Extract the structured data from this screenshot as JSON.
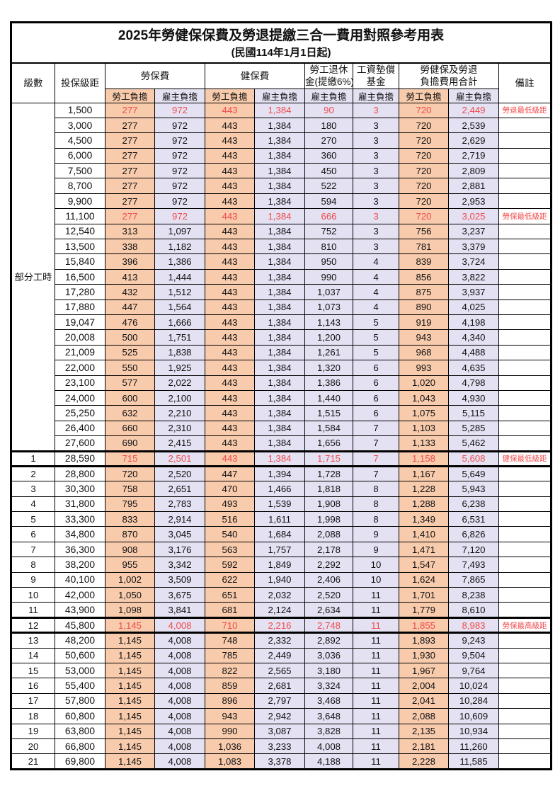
{
  "title": "2025年勞健保保費及勞退提繳三合一費用對照參考用表",
  "subtitle": "(民國114年1月1日起)",
  "header": {
    "level": "級數",
    "salary_bracket": "投保級距",
    "labor_insurance": "勞保費",
    "health_insurance": "健保費",
    "pension_line1": "勞工退休",
    "pension_line2": "金(提繳6%)",
    "wage_fund_line1": "工資墊償",
    "wage_fund_line2": "基金",
    "total_line1": "勞健保及勞退",
    "total_line2": "負擔費用合計",
    "note": "備註",
    "employee_label": "勞工負擔",
    "employer_label": "雇主負擔"
  },
  "part_time_label": "部分工時",
  "colors": {
    "employee_bg": "#F8CBAD",
    "employer_bg": "#E3E1F2",
    "highlight_text": "#F14B4B",
    "border": "#000000"
  },
  "rows": [
    {
      "level": "",
      "salary": "1,500",
      "values": [
        "277",
        "972",
        "443",
        "1,384",
        "90",
        "3",
        "720",
        "2,449"
      ],
      "note": "勞退最低級距",
      "red": true,
      "thick": false
    },
    {
      "level": "",
      "salary": "3,000",
      "values": [
        "277",
        "972",
        "443",
        "1,384",
        "180",
        "3",
        "720",
        "2,539"
      ],
      "note": "",
      "red": false,
      "thick": false
    },
    {
      "level": "",
      "salary": "4,500",
      "values": [
        "277",
        "972",
        "443",
        "1,384",
        "270",
        "3",
        "720",
        "2,629"
      ],
      "note": "",
      "red": false,
      "thick": false
    },
    {
      "level": "",
      "salary": "6,000",
      "values": [
        "277",
        "972",
        "443",
        "1,384",
        "360",
        "3",
        "720",
        "2,719"
      ],
      "note": "",
      "red": false,
      "thick": false
    },
    {
      "level": "",
      "salary": "7,500",
      "values": [
        "277",
        "972",
        "443",
        "1,384",
        "450",
        "3",
        "720",
        "2,809"
      ],
      "note": "",
      "red": false,
      "thick": false
    },
    {
      "level": "",
      "salary": "8,700",
      "values": [
        "277",
        "972",
        "443",
        "1,384",
        "522",
        "3",
        "720",
        "2,881"
      ],
      "note": "",
      "red": false,
      "thick": false
    },
    {
      "level": "",
      "salary": "9,900",
      "values": [
        "277",
        "972",
        "443",
        "1,384",
        "594",
        "3",
        "720",
        "2,953"
      ],
      "note": "",
      "red": false,
      "thick": false
    },
    {
      "level": "",
      "salary": "11,100",
      "values": [
        "277",
        "972",
        "443",
        "1,384",
        "666",
        "3",
        "720",
        "3,025"
      ],
      "note": "勞保最低級距",
      "red": true,
      "thick": false
    },
    {
      "level": "",
      "salary": "12,540",
      "values": [
        "313",
        "1,097",
        "443",
        "1,384",
        "752",
        "3",
        "756",
        "3,237"
      ],
      "note": "",
      "red": false,
      "thick": false
    },
    {
      "level": "",
      "salary": "13,500",
      "values": [
        "338",
        "1,182",
        "443",
        "1,384",
        "810",
        "3",
        "781",
        "3,379"
      ],
      "note": "",
      "red": false,
      "thick": false
    },
    {
      "level": "",
      "salary": "15,840",
      "values": [
        "396",
        "1,386",
        "443",
        "1,384",
        "950",
        "4",
        "839",
        "3,724"
      ],
      "note": "",
      "red": false,
      "thick": false
    },
    {
      "level": "",
      "salary": "16,500",
      "values": [
        "413",
        "1,444",
        "443",
        "1,384",
        "990",
        "4",
        "856",
        "3,822"
      ],
      "note": "",
      "red": false,
      "thick": false
    },
    {
      "level": "",
      "salary": "17,280",
      "values": [
        "432",
        "1,512",
        "443",
        "1,384",
        "1,037",
        "4",
        "875",
        "3,937"
      ],
      "note": "",
      "red": false,
      "thick": false
    },
    {
      "level": "",
      "salary": "17,880",
      "values": [
        "447",
        "1,564",
        "443",
        "1,384",
        "1,073",
        "4",
        "890",
        "4,025"
      ],
      "note": "",
      "red": false,
      "thick": false
    },
    {
      "level": "",
      "salary": "19,047",
      "values": [
        "476",
        "1,666",
        "443",
        "1,384",
        "1,143",
        "5",
        "919",
        "4,198"
      ],
      "note": "",
      "red": false,
      "thick": false
    },
    {
      "level": "",
      "salary": "20,008",
      "values": [
        "500",
        "1,751",
        "443",
        "1,384",
        "1,200",
        "5",
        "943",
        "4,340"
      ],
      "note": "",
      "red": false,
      "thick": false
    },
    {
      "level": "",
      "salary": "21,009",
      "values": [
        "525",
        "1,838",
        "443",
        "1,384",
        "1,261",
        "5",
        "968",
        "4,488"
      ],
      "note": "",
      "red": false,
      "thick": false
    },
    {
      "level": "",
      "salary": "22,000",
      "values": [
        "550",
        "1,925",
        "443",
        "1,384",
        "1,320",
        "6",
        "993",
        "4,635"
      ],
      "note": "",
      "red": false,
      "thick": false
    },
    {
      "level": "",
      "salary": "23,100",
      "values": [
        "577",
        "2,022",
        "443",
        "1,384",
        "1,386",
        "6",
        "1,020",
        "4,798"
      ],
      "note": "",
      "red": false,
      "thick": false
    },
    {
      "level": "",
      "salary": "24,000",
      "values": [
        "600",
        "2,100",
        "443",
        "1,384",
        "1,440",
        "6",
        "1,043",
        "4,930"
      ],
      "note": "",
      "red": false,
      "thick": false
    },
    {
      "level": "",
      "salary": "25,250",
      "values": [
        "632",
        "2,210",
        "443",
        "1,384",
        "1,515",
        "6",
        "1,075",
        "5,115"
      ],
      "note": "",
      "red": false,
      "thick": false
    },
    {
      "level": "",
      "salary": "26,400",
      "values": [
        "660",
        "2,310",
        "443",
        "1,384",
        "1,584",
        "7",
        "1,103",
        "5,285"
      ],
      "note": "",
      "red": false,
      "thick": false
    },
    {
      "level": "",
      "salary": "27,600",
      "values": [
        "690",
        "2,415",
        "443",
        "1,384",
        "1,656",
        "7",
        "1,133",
        "5,462"
      ],
      "note": "",
      "red": false,
      "thick": false
    },
    {
      "level": "1",
      "salary": "28,590",
      "values": [
        "715",
        "2,501",
        "443",
        "1,384",
        "1,715",
        "7",
        "1,158",
        "5,608"
      ],
      "note": "健保最低級距",
      "red": true,
      "thick": true
    },
    {
      "level": "2",
      "salary": "28,800",
      "values": [
        "720",
        "2,520",
        "447",
        "1,394",
        "1,728",
        "7",
        "1,167",
        "5,649"
      ],
      "note": "",
      "red": false,
      "thick": false
    },
    {
      "level": "3",
      "salary": "30,300",
      "values": [
        "758",
        "2,651",
        "470",
        "1,466",
        "1,818",
        "8",
        "1,228",
        "5,943"
      ],
      "note": "",
      "red": false,
      "thick": false
    },
    {
      "level": "4",
      "salary": "31,800",
      "values": [
        "795",
        "2,783",
        "493",
        "1,539",
        "1,908",
        "8",
        "1,288",
        "6,238"
      ],
      "note": "",
      "red": false,
      "thick": false
    },
    {
      "level": "5",
      "salary": "33,300",
      "values": [
        "833",
        "2,914",
        "516",
        "1,611",
        "1,998",
        "8",
        "1,349",
        "6,531"
      ],
      "note": "",
      "red": false,
      "thick": false
    },
    {
      "level": "6",
      "salary": "34,800",
      "values": [
        "870",
        "3,045",
        "540",
        "1,684",
        "2,088",
        "9",
        "1,410",
        "6,826"
      ],
      "note": "",
      "red": false,
      "thick": false
    },
    {
      "level": "7",
      "salary": "36,300",
      "values": [
        "908",
        "3,176",
        "563",
        "1,757",
        "2,178",
        "9",
        "1,471",
        "7,120"
      ],
      "note": "",
      "red": false,
      "thick": false
    },
    {
      "level": "8",
      "salary": "38,200",
      "values": [
        "955",
        "3,342",
        "592",
        "1,849",
        "2,292",
        "10",
        "1,547",
        "7,493"
      ],
      "note": "",
      "red": false,
      "thick": false
    },
    {
      "level": "9",
      "salary": "40,100",
      "values": [
        "1,002",
        "3,509",
        "622",
        "1,940",
        "2,406",
        "10",
        "1,624",
        "7,865"
      ],
      "note": "",
      "red": false,
      "thick": false
    },
    {
      "level": "10",
      "salary": "42,000",
      "values": [
        "1,050",
        "3,675",
        "651",
        "2,032",
        "2,520",
        "11",
        "1,701",
        "8,238"
      ],
      "note": "",
      "red": false,
      "thick": false
    },
    {
      "level": "11",
      "salary": "43,900",
      "values": [
        "1,098",
        "3,841",
        "681",
        "2,124",
        "2,634",
        "11",
        "1,779",
        "8,610"
      ],
      "note": "",
      "red": false,
      "thick": false
    },
    {
      "level": "12",
      "salary": "45,800",
      "values": [
        "1,145",
        "4,008",
        "710",
        "2,216",
        "2,748",
        "11",
        "1,855",
        "8,983"
      ],
      "note": "勞保最高級距",
      "red": true,
      "thick": true
    },
    {
      "level": "13",
      "salary": "48,200",
      "values": [
        "1,145",
        "4,008",
        "748",
        "2,332",
        "2,892",
        "11",
        "1,893",
        "9,243"
      ],
      "note": "",
      "red": false,
      "thick": false
    },
    {
      "level": "14",
      "salary": "50,600",
      "values": [
        "1,145",
        "4,008",
        "785",
        "2,449",
        "3,036",
        "11",
        "1,930",
        "9,504"
      ],
      "note": "",
      "red": false,
      "thick": false
    },
    {
      "level": "15",
      "salary": "53,000",
      "values": [
        "1,145",
        "4,008",
        "822",
        "2,565",
        "3,180",
        "11",
        "1,967",
        "9,764"
      ],
      "note": "",
      "red": false,
      "thick": false
    },
    {
      "level": "16",
      "salary": "55,400",
      "values": [
        "1,145",
        "4,008",
        "859",
        "2,681",
        "3,324",
        "11",
        "2,004",
        "10,024"
      ],
      "note": "",
      "red": false,
      "thick": false
    },
    {
      "level": "17",
      "salary": "57,800",
      "values": [
        "1,145",
        "4,008",
        "896",
        "2,797",
        "3,468",
        "11",
        "2,041",
        "10,284"
      ],
      "note": "",
      "red": false,
      "thick": false
    },
    {
      "level": "18",
      "salary": "60,800",
      "values": [
        "1,145",
        "4,008",
        "943",
        "2,942",
        "3,648",
        "11",
        "2,088",
        "10,609"
      ],
      "note": "",
      "red": false,
      "thick": false
    },
    {
      "level": "19",
      "salary": "63,800",
      "values": [
        "1,145",
        "4,008",
        "990",
        "3,087",
        "3,828",
        "11",
        "2,135",
        "10,934"
      ],
      "note": "",
      "red": false,
      "thick": false
    },
    {
      "level": "20",
      "salary": "66,800",
      "values": [
        "1,145",
        "4,008",
        "1,036",
        "3,233",
        "4,008",
        "11",
        "2,181",
        "11,260"
      ],
      "note": "",
      "red": false,
      "thick": false
    },
    {
      "level": "21",
      "salary": "69,800",
      "values": [
        "1,145",
        "4,008",
        "1,083",
        "3,378",
        "4,188",
        "11",
        "2,228",
        "11,585"
      ],
      "note": "",
      "red": false,
      "thick": false
    }
  ]
}
